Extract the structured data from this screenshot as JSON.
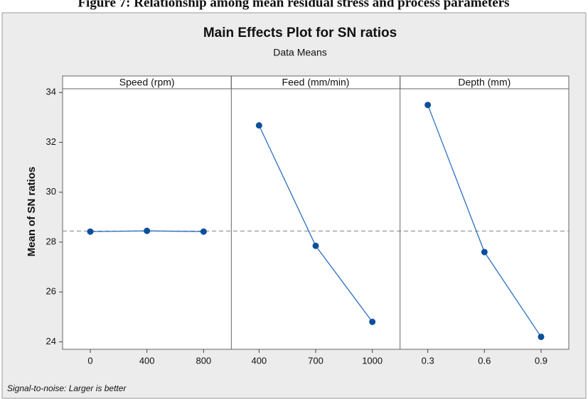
{
  "caption": "Figure 7: Relationship among mean residual stress and process parameters",
  "chart_data": {
    "type": "line",
    "title": "Main Effects Plot for SN ratios",
    "subtitle": "Data Means",
    "ylabel": "Mean of SN ratios",
    "footnote": "Signal-to-noise: Larger is better",
    "ylim": [
      23.7,
      34.15
    ],
    "yticks": [
      24,
      26,
      28,
      30,
      32,
      34
    ],
    "reference_line": 28.44,
    "color": "#2a6fc0",
    "marker_color": "#0b4f9c",
    "panels": [
      {
        "name": "Speed (rpm)",
        "categories": [
          "0",
          "400",
          "800"
        ],
        "values": [
          28.42,
          28.45,
          28.42
        ]
      },
      {
        "name": "Feed (mm/min)",
        "categories": [
          "400",
          "700",
          "1000"
        ],
        "values": [
          32.68,
          27.85,
          24.8
        ]
      },
      {
        "name": "Depth (mm)",
        "categories": [
          "0.3",
          "0.6",
          "0.9"
        ],
        "values": [
          33.5,
          27.6,
          24.2
        ]
      }
    ]
  }
}
